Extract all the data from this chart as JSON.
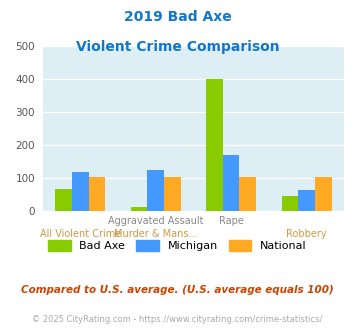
{
  "title_line1": "2019 Bad Axe",
  "title_line2": "Violent Crime Comparison",
  "series": {
    "Bad Axe": [
      68,
      13,
      400,
      45
    ],
    "Michigan": [
      118,
      125,
      170,
      65
    ],
    "National": [
      103,
      104,
      103,
      103
    ]
  },
  "colors": {
    "Bad Axe": "#88cc00",
    "Michigan": "#4499ff",
    "National": "#ffaa22"
  },
  "ylim": [
    0,
    500
  ],
  "yticks": [
    0,
    100,
    200,
    300,
    400,
    500
  ],
  "title_color": "#1177cc",
  "axis_bg_color": "#ddeef5",
  "fig_bg_color": "#ffffff",
  "grid_color": "#ffffff",
  "label_top_color": "#888888",
  "label_bottom_color": "#cc9944",
  "top_labels": [
    "",
    "Aggravated Assault",
    "Rape",
    ""
  ],
  "bottom_labels": [
    "All Violent Crime",
    "Murder & Mans...",
    "",
    "Robbery"
  ],
  "footnote1": "Compared to U.S. average. (U.S. average equals 100)",
  "footnote2": "© 2025 CityRating.com - https://www.cityrating.com/crime-statistics/",
  "footnote1_color": "#cc4400",
  "footnote2_color": "#aaaaaa"
}
